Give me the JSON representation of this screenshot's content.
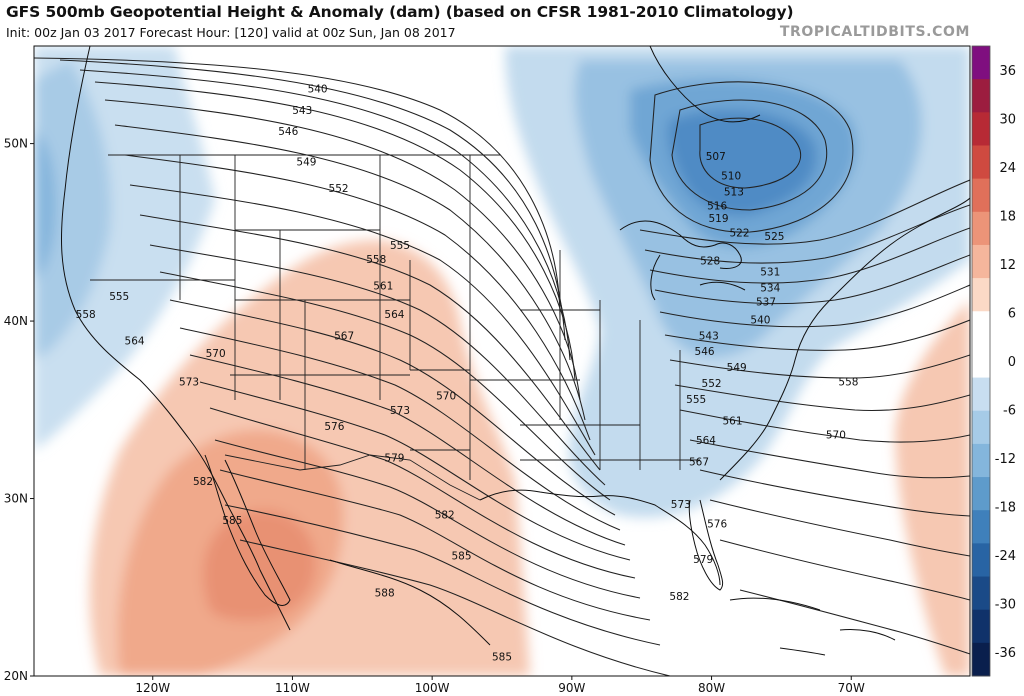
{
  "header": {
    "title": "GFS 500mb Geopotential Height & Anomaly (dam) (based on CFSR 1981-2010 Climatology)",
    "subtitle": "Init: 00z Jan 03 2017   Forecast Hour: [120]   valid at 00z Sun, Jan 08 2017",
    "credit": "TROPICALTIDBITS.COM"
  },
  "map": {
    "lon_range": [
      -128.5,
      -61.5
    ],
    "lat_range": [
      20,
      55.5
    ],
    "lat_ticks": [
      {
        "value": 50,
        "label": "50N"
      },
      {
        "value": 40,
        "label": "40N"
      },
      {
        "value": 30,
        "label": "30N"
      },
      {
        "value": 20,
        "label": "20N"
      }
    ],
    "lon_ticks": [
      {
        "value": -120,
        "label": "120W"
      },
      {
        "value": -110,
        "label": "110W"
      },
      {
        "value": -100,
        "label": "100W"
      },
      {
        "value": -90,
        "label": "90W"
      },
      {
        "value": -80,
        "label": "80W"
      },
      {
        "value": -70,
        "label": "70W"
      }
    ],
    "contour_labels": [
      {
        "value": "540",
        "lon": -108.2,
        "lat": 53.1
      },
      {
        "value": "543",
        "lon": -109.3,
        "lat": 51.9
      },
      {
        "value": "546",
        "lon": -110.3,
        "lat": 50.7
      },
      {
        "value": "549",
        "lon": -109.0,
        "lat": 49.0
      },
      {
        "value": "552",
        "lon": -106.7,
        "lat": 47.5
      },
      {
        "value": "555",
        "lon": -102.3,
        "lat": 44.3
      },
      {
        "value": "558",
        "lon": -104.0,
        "lat": 43.5
      },
      {
        "value": "561",
        "lon": -103.5,
        "lat": 42.0
      },
      {
        "value": "564",
        "lon": -102.7,
        "lat": 40.4
      },
      {
        "value": "567",
        "lon": -106.3,
        "lat": 39.2
      },
      {
        "value": "570",
        "lon": -99.0,
        "lat": 35.8
      },
      {
        "value": "573",
        "lon": -102.3,
        "lat": 35.0
      },
      {
        "value": "576",
        "lon": -107.0,
        "lat": 34.1
      },
      {
        "value": "579",
        "lon": -102.7,
        "lat": 32.3
      },
      {
        "value": "582",
        "lon": -99.1,
        "lat": 29.1
      },
      {
        "value": "585",
        "lon": -97.9,
        "lat": 26.8
      },
      {
        "value": "588",
        "lon": -103.4,
        "lat": 24.7
      },
      {
        "value": "585",
        "lon": -114.3,
        "lat": 28.8
      },
      {
        "value": "582",
        "lon": -116.4,
        "lat": 31.0
      },
      {
        "value": "573",
        "lon": -117.4,
        "lat": 36.6
      },
      {
        "value": "570",
        "lon": -115.5,
        "lat": 38.2
      },
      {
        "value": "564",
        "lon": -121.3,
        "lat": 38.9
      },
      {
        "value": "558",
        "lon": -124.8,
        "lat": 40.4
      },
      {
        "value": "555",
        "lon": -122.4,
        "lat": 41.4
      },
      {
        "value": "507",
        "lon": -79.7,
        "lat": 49.3
      },
      {
        "value": "510",
        "lon": -78.6,
        "lat": 48.2
      },
      {
        "value": "513",
        "lon": -78.4,
        "lat": 47.3
      },
      {
        "value": "516",
        "lon": -79.6,
        "lat": 46.5
      },
      {
        "value": "519",
        "lon": -79.5,
        "lat": 45.8
      },
      {
        "value": "522",
        "lon": -78.0,
        "lat": 45.0
      },
      {
        "value": "525",
        "lon": -75.5,
        "lat": 44.8
      },
      {
        "value": "528",
        "lon": -80.1,
        "lat": 43.4
      },
      {
        "value": "531",
        "lon": -75.8,
        "lat": 42.8
      },
      {
        "value": "534",
        "lon": -75.8,
        "lat": 41.9
      },
      {
        "value": "537",
        "lon": -76.1,
        "lat": 41.1
      },
      {
        "value": "540",
        "lon": -76.5,
        "lat": 40.1
      },
      {
        "value": "543",
        "lon": -80.2,
        "lat": 39.2
      },
      {
        "value": "546",
        "lon": -80.5,
        "lat": 38.3
      },
      {
        "value": "549",
        "lon": -78.2,
        "lat": 37.4
      },
      {
        "value": "552",
        "lon": -80.0,
        "lat": 36.5
      },
      {
        "value": "555",
        "lon": -81.1,
        "lat": 35.6
      },
      {
        "value": "558",
        "lon": -70.2,
        "lat": 36.6
      },
      {
        "value": "561",
        "lon": -78.5,
        "lat": 34.4
      },
      {
        "value": "564",
        "lon": -80.4,
        "lat": 33.3
      },
      {
        "value": "567",
        "lon": -80.9,
        "lat": 32.1
      },
      {
        "value": "570",
        "lon": -71.1,
        "lat": 33.6
      },
      {
        "value": "573",
        "lon": -82.2,
        "lat": 29.7
      },
      {
        "value": "576",
        "lon": -79.6,
        "lat": 28.6
      },
      {
        "value": "579",
        "lon": -80.6,
        "lat": 26.6
      },
      {
        "value": "582",
        "lon": -82.3,
        "lat": 24.5
      },
      {
        "value": "585",
        "lon": -95.0,
        "lat": 21.1
      }
    ]
  },
  "colorbar": {
    "labels": [
      "36",
      "30",
      "24",
      "18",
      "12",
      "6",
      "0",
      "-6",
      "-12",
      "-18",
      "-24",
      "-30",
      "-36"
    ],
    "colors": [
      "#7f0f7f",
      "#9c1d3f",
      "#b72a35",
      "#cf4a40",
      "#e0705a",
      "#ec9478",
      "#f5b69c",
      "#fbd9c6",
      "#ffffff",
      "#ffffff",
      "#c8def0",
      "#a6cbe7",
      "#84b6dc",
      "#5e9bcb",
      "#3f80bb",
      "#2864a4",
      "#1a4a87",
      "#10326a",
      "#0a1f4d"
    ],
    "ticks": [
      36,
      30,
      24,
      18,
      12,
      6,
      0,
      -6,
      -12,
      -18,
      -24,
      -30,
      -36
    ],
    "range": [
      -39,
      39
    ]
  }
}
